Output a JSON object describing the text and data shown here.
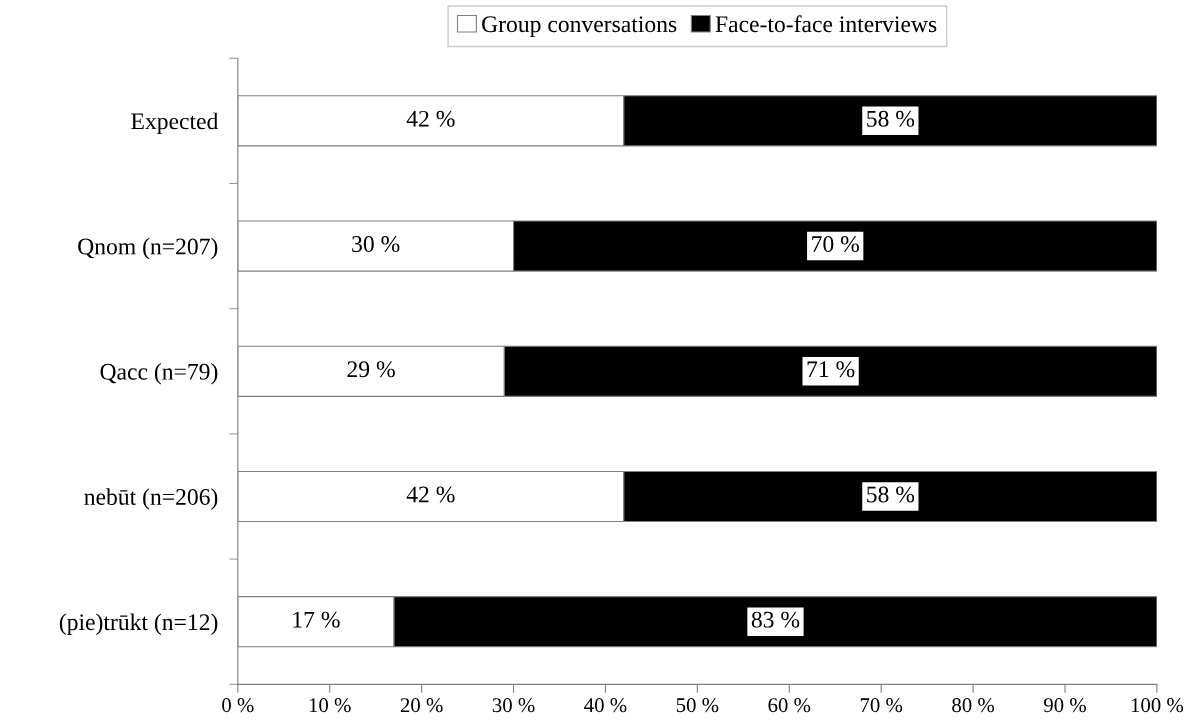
{
  "chart_data": {
    "type": "bar",
    "orientation": "horizontal",
    "stacked": true,
    "categories": [
      "Expected",
      "Qnom (n=207)",
      "Qacc (n=79)",
      "nebūt (n=206)",
      "(pie)trūkt (n=12)"
    ],
    "series": [
      {
        "name": "Group conversations",
        "color": "#ffffff",
        "values": [
          42,
          30,
          29,
          42,
          17
        ],
        "value_labels": [
          "42 %",
          "30 %",
          "29 %",
          "42 %",
          "17 %"
        ]
      },
      {
        "name": "Face-to-face interviews",
        "color": "#000000",
        "values": [
          58,
          70,
          71,
          58,
          83
        ],
        "value_labels": [
          "58 %",
          "70 %",
          "71 %",
          "58 %",
          "83 %"
        ]
      }
    ],
    "xlim": [
      0,
      100
    ],
    "xticks": [
      {
        "value": 0,
        "label": "0 %"
      },
      {
        "value": 10,
        "label": "10 %"
      },
      {
        "value": 20,
        "label": "20 %"
      },
      {
        "value": 30,
        "label": "30 %"
      },
      {
        "value": 40,
        "label": "40 %"
      },
      {
        "value": 50,
        "label": "50 %"
      },
      {
        "value": 60,
        "label": "60 %"
      },
      {
        "value": 70,
        "label": "70 %"
      },
      {
        "value": 80,
        "label": "80 %"
      },
      {
        "value": 90,
        "label": "90 %"
      },
      {
        "value": 100,
        "label": "100 %"
      }
    ],
    "grid": false,
    "legend": "top"
  }
}
